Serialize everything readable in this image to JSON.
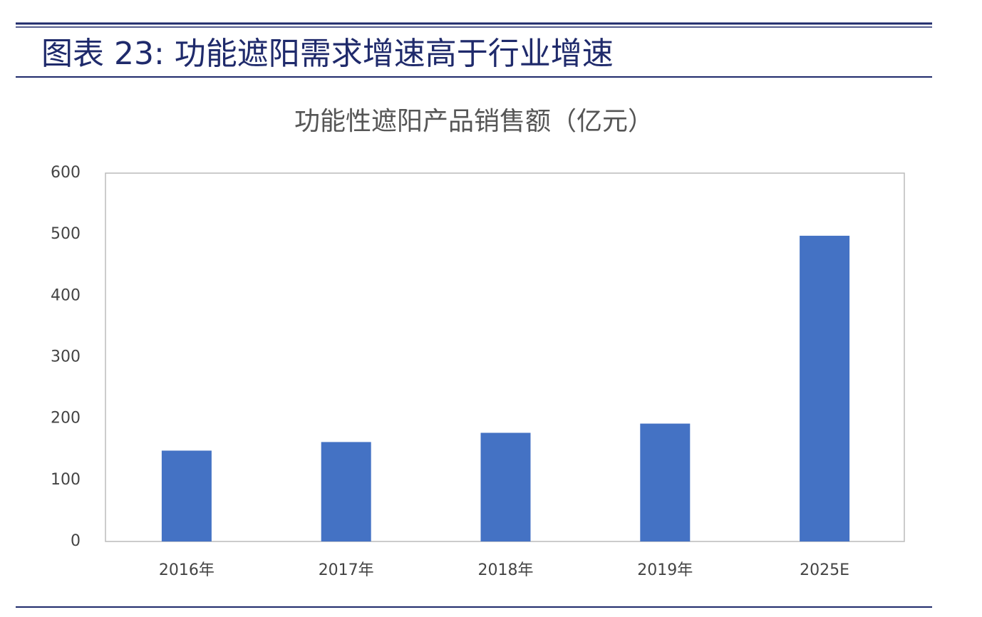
{
  "header": {
    "title": "图表 23: 功能遮阳需求增速高于行业增速"
  },
  "chart_data": {
    "type": "bar",
    "title": "功能性遮阳产品销售额（亿元）",
    "categories": [
      "2016年",
      "2017年",
      "2018年",
      "2019年",
      "2025E"
    ],
    "values": [
      148,
      162,
      177,
      192,
      498
    ],
    "color": "#4472c4",
    "ylim": [
      0,
      600
    ],
    "yticks": [
      0,
      100,
      200,
      300,
      400,
      500,
      600
    ],
    "grid": false
  }
}
